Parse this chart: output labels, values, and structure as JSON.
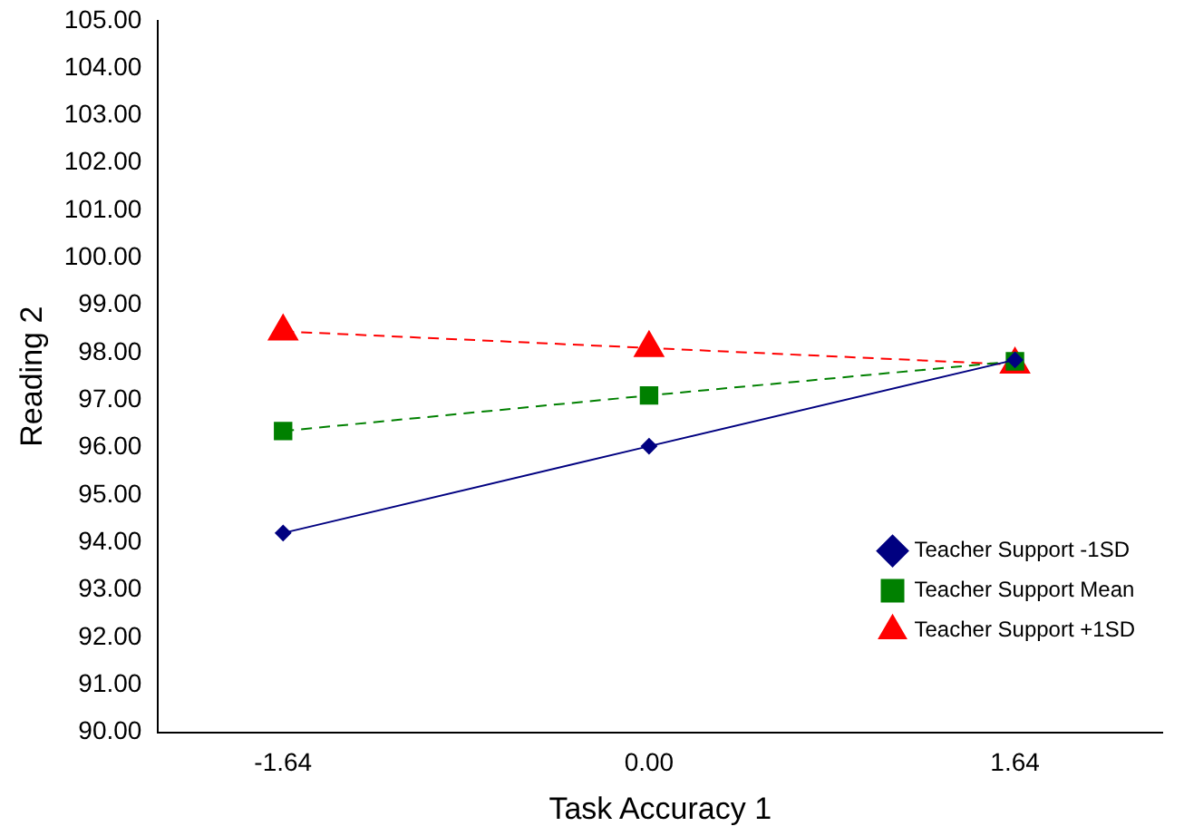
{
  "chart_data": {
    "type": "line",
    "xlabel": "Task Accuracy 1",
    "ylabel": "Reading 2",
    "x": [
      -1.64,
      0,
      1.64
    ],
    "xlim": [
      -2.2,
      2.3
    ],
    "xticks": [
      {
        "value": -1.64,
        "label": "-1.64"
      },
      {
        "value": 0,
        "label": "0.00"
      },
      {
        "value": 1.64,
        "label": "1.64"
      }
    ],
    "ylim": [
      90,
      105
    ],
    "yticks": [
      {
        "value": 90,
        "label": "90.00"
      },
      {
        "value": 91,
        "label": "91.00"
      },
      {
        "value": 92,
        "label": "92.00"
      },
      {
        "value": 93,
        "label": "93.00"
      },
      {
        "value": 94,
        "label": "94.00"
      },
      {
        "value": 95,
        "label": "95.00"
      },
      {
        "value": 96,
        "label": "96.00"
      },
      {
        "value": 97,
        "label": "97.00"
      },
      {
        "value": 98,
        "label": "98.00"
      },
      {
        "value": 99,
        "label": "99.00"
      },
      {
        "value": 100,
        "label": "100.00"
      },
      {
        "value": 101,
        "label": "101.00"
      },
      {
        "value": 102,
        "label": "102.00"
      },
      {
        "value": 103,
        "label": "103.00"
      },
      {
        "value": 104,
        "label": "104.00"
      },
      {
        "value": 105,
        "label": "105.00"
      }
    ],
    "series": [
      {
        "name": "Teacher Support -1SD",
        "color": "#000080",
        "marker": "diamond",
        "line_style": "solid",
        "values": [
          94.2,
          96.03,
          97.85
        ]
      },
      {
        "name": "Teacher Support Mean",
        "color": "#008000",
        "marker": "square",
        "line_style": "dashed",
        "values": [
          96.35,
          97.1,
          97.82
        ]
      },
      {
        "name": "Teacher Support +1SD",
        "color": "#ff0000",
        "marker": "triangle",
        "line_style": "dashed",
        "values": [
          98.45,
          98.1,
          97.75
        ]
      }
    ],
    "legend": "bottom right",
    "grid": false
  }
}
